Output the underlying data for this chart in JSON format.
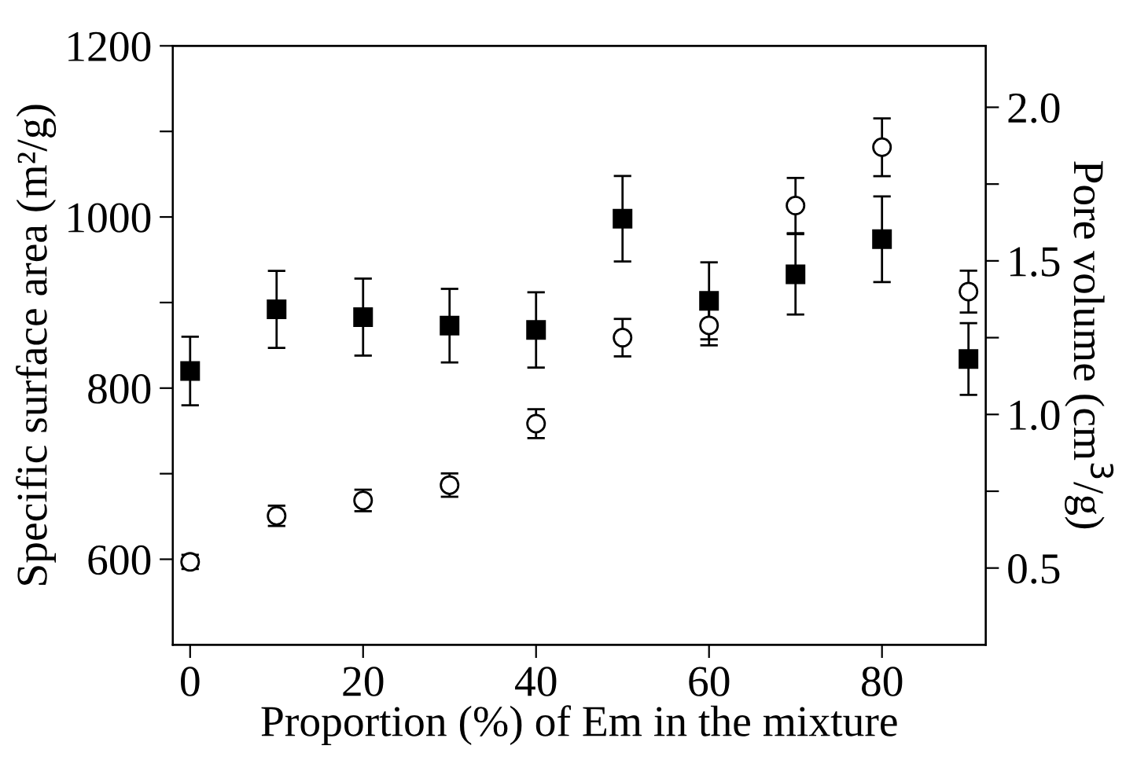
{
  "chart_data": {
    "type": "scatter",
    "xlabel": "Proportion (%) of Em in the mixture",
    "ylabel": "Specific surface area (m²/g)",
    "y2label": "Pore volume (cm$^{3}$/g)",
    "x": [
      0,
      10,
      20,
      30,
      40,
      50,
      60,
      70,
      80,
      90
    ],
    "series": [
      {
        "color": "#000000",
        "marker": "square",
        "values": [
          820,
          892,
          883,
          873,
          868,
          998,
          902,
          933,
          974,
          834
        ],
        "errors": [
          40,
          45,
          45,
          43,
          44,
          50,
          45,
          47,
          50,
          42
        ]
      },
      {
        "color": "#000000",
        "marker": "circle",
        "axis": "y2",
        "values": [
          0.52,
          0.67,
          0.72,
          0.77,
          0.97,
          1.25,
          1.29,
          1.68,
          1.87,
          1.4
        ],
        "errors": [
          0.023,
          0.033,
          0.035,
          0.038,
          0.047,
          0.061,
          0.065,
          0.09,
          0.094,
          0.068
        ]
      }
    ],
    "xlim": [
      -2,
      92
    ],
    "xticks": [
      0,
      20,
      40,
      60,
      80
    ],
    "ylim": [
      500,
      1200
    ],
    "yticks": [
      600,
      {
        "value": 700,
        "label": null
      },
      800,
      {
        "value": 900,
        "label": null
      },
      1000,
      {
        "value": 1100,
        "label": null
      },
      1200
    ],
    "y2lim": [
      0.25,
      2.2
    ],
    "y2ticks": [
      0.5,
      {
        "value": 0.75,
        "label": null
      },
      {
        "value": 1,
        "label": "1.0"
      },
      {
        "value": 1.25,
        "label": null
      },
      1.5,
      {
        "value": 1.75,
        "label": null
      },
      {
        "value": 2,
        "label": "2.0"
      }
    ],
    "grid": false,
    "legend": false
  }
}
